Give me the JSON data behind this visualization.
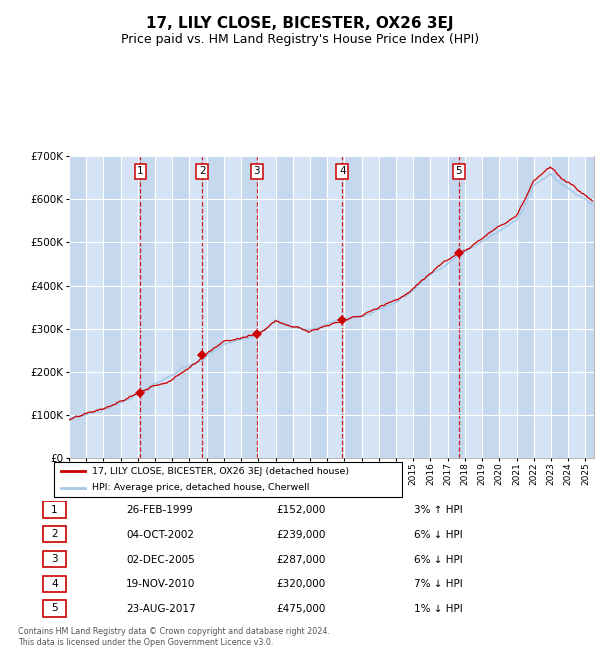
{
  "title": "17, LILY CLOSE, BICESTER, OX26 3EJ",
  "subtitle": "Price paid vs. HM Land Registry's House Price Index (HPI)",
  "title_fontsize": 11,
  "subtitle_fontsize": 9,
  "hpi_color": "#a8c8e8",
  "price_color": "#cc0000",
  "marker_color": "#cc0000",
  "plot_bg": "#dce9f5",
  "grid_color": "#ffffff",
  "dashed_color": "#cc0000",
  "ylim": [
    0,
    700000
  ],
  "yticks": [
    0,
    100000,
    200000,
    300000,
    400000,
    500000,
    600000,
    700000
  ],
  "sales": [
    {
      "num": 1,
      "date": "26-FEB-1999",
      "year": 1999.15,
      "price": 152000,
      "hpi_note": "3% ↑ HPI"
    },
    {
      "num": 2,
      "date": "04-OCT-2002",
      "year": 2002.75,
      "price": 239000,
      "hpi_note": "6% ↓ HPI"
    },
    {
      "num": 3,
      "date": "02-DEC-2005",
      "year": 2005.92,
      "price": 287000,
      "hpi_note": "6% ↓ HPI"
    },
    {
      "num": 4,
      "date": "19-NOV-2010",
      "year": 2010.88,
      "price": 320000,
      "hpi_note": "7% ↓ HPI"
    },
    {
      "num": 5,
      "date": "23-AUG-2017",
      "year": 2017.64,
      "price": 475000,
      "hpi_note": "1% ↓ HPI"
    }
  ],
  "legend_label_price": "17, LILY CLOSE, BICESTER, OX26 3EJ (detached house)",
  "legend_label_hpi": "HPI: Average price, detached house, Cherwell",
  "footer": "Contains HM Land Registry data © Crown copyright and database right 2024.\nThis data is licensed under the Open Government Licence v3.0.",
  "table_rows": [
    [
      "1",
      "26-FEB-1999",
      "£152,000",
      "3% ↑ HPI"
    ],
    [
      "2",
      "04-OCT-2002",
      "£239,000",
      "6% ↓ HPI"
    ],
    [
      "3",
      "02-DEC-2005",
      "£287,000",
      "6% ↓ HPI"
    ],
    [
      "4",
      "19-NOV-2010",
      "£320,000",
      "7% ↓ HPI"
    ],
    [
      "5",
      "23-AUG-2017",
      "£475,000",
      "1% ↓ HPI"
    ]
  ]
}
